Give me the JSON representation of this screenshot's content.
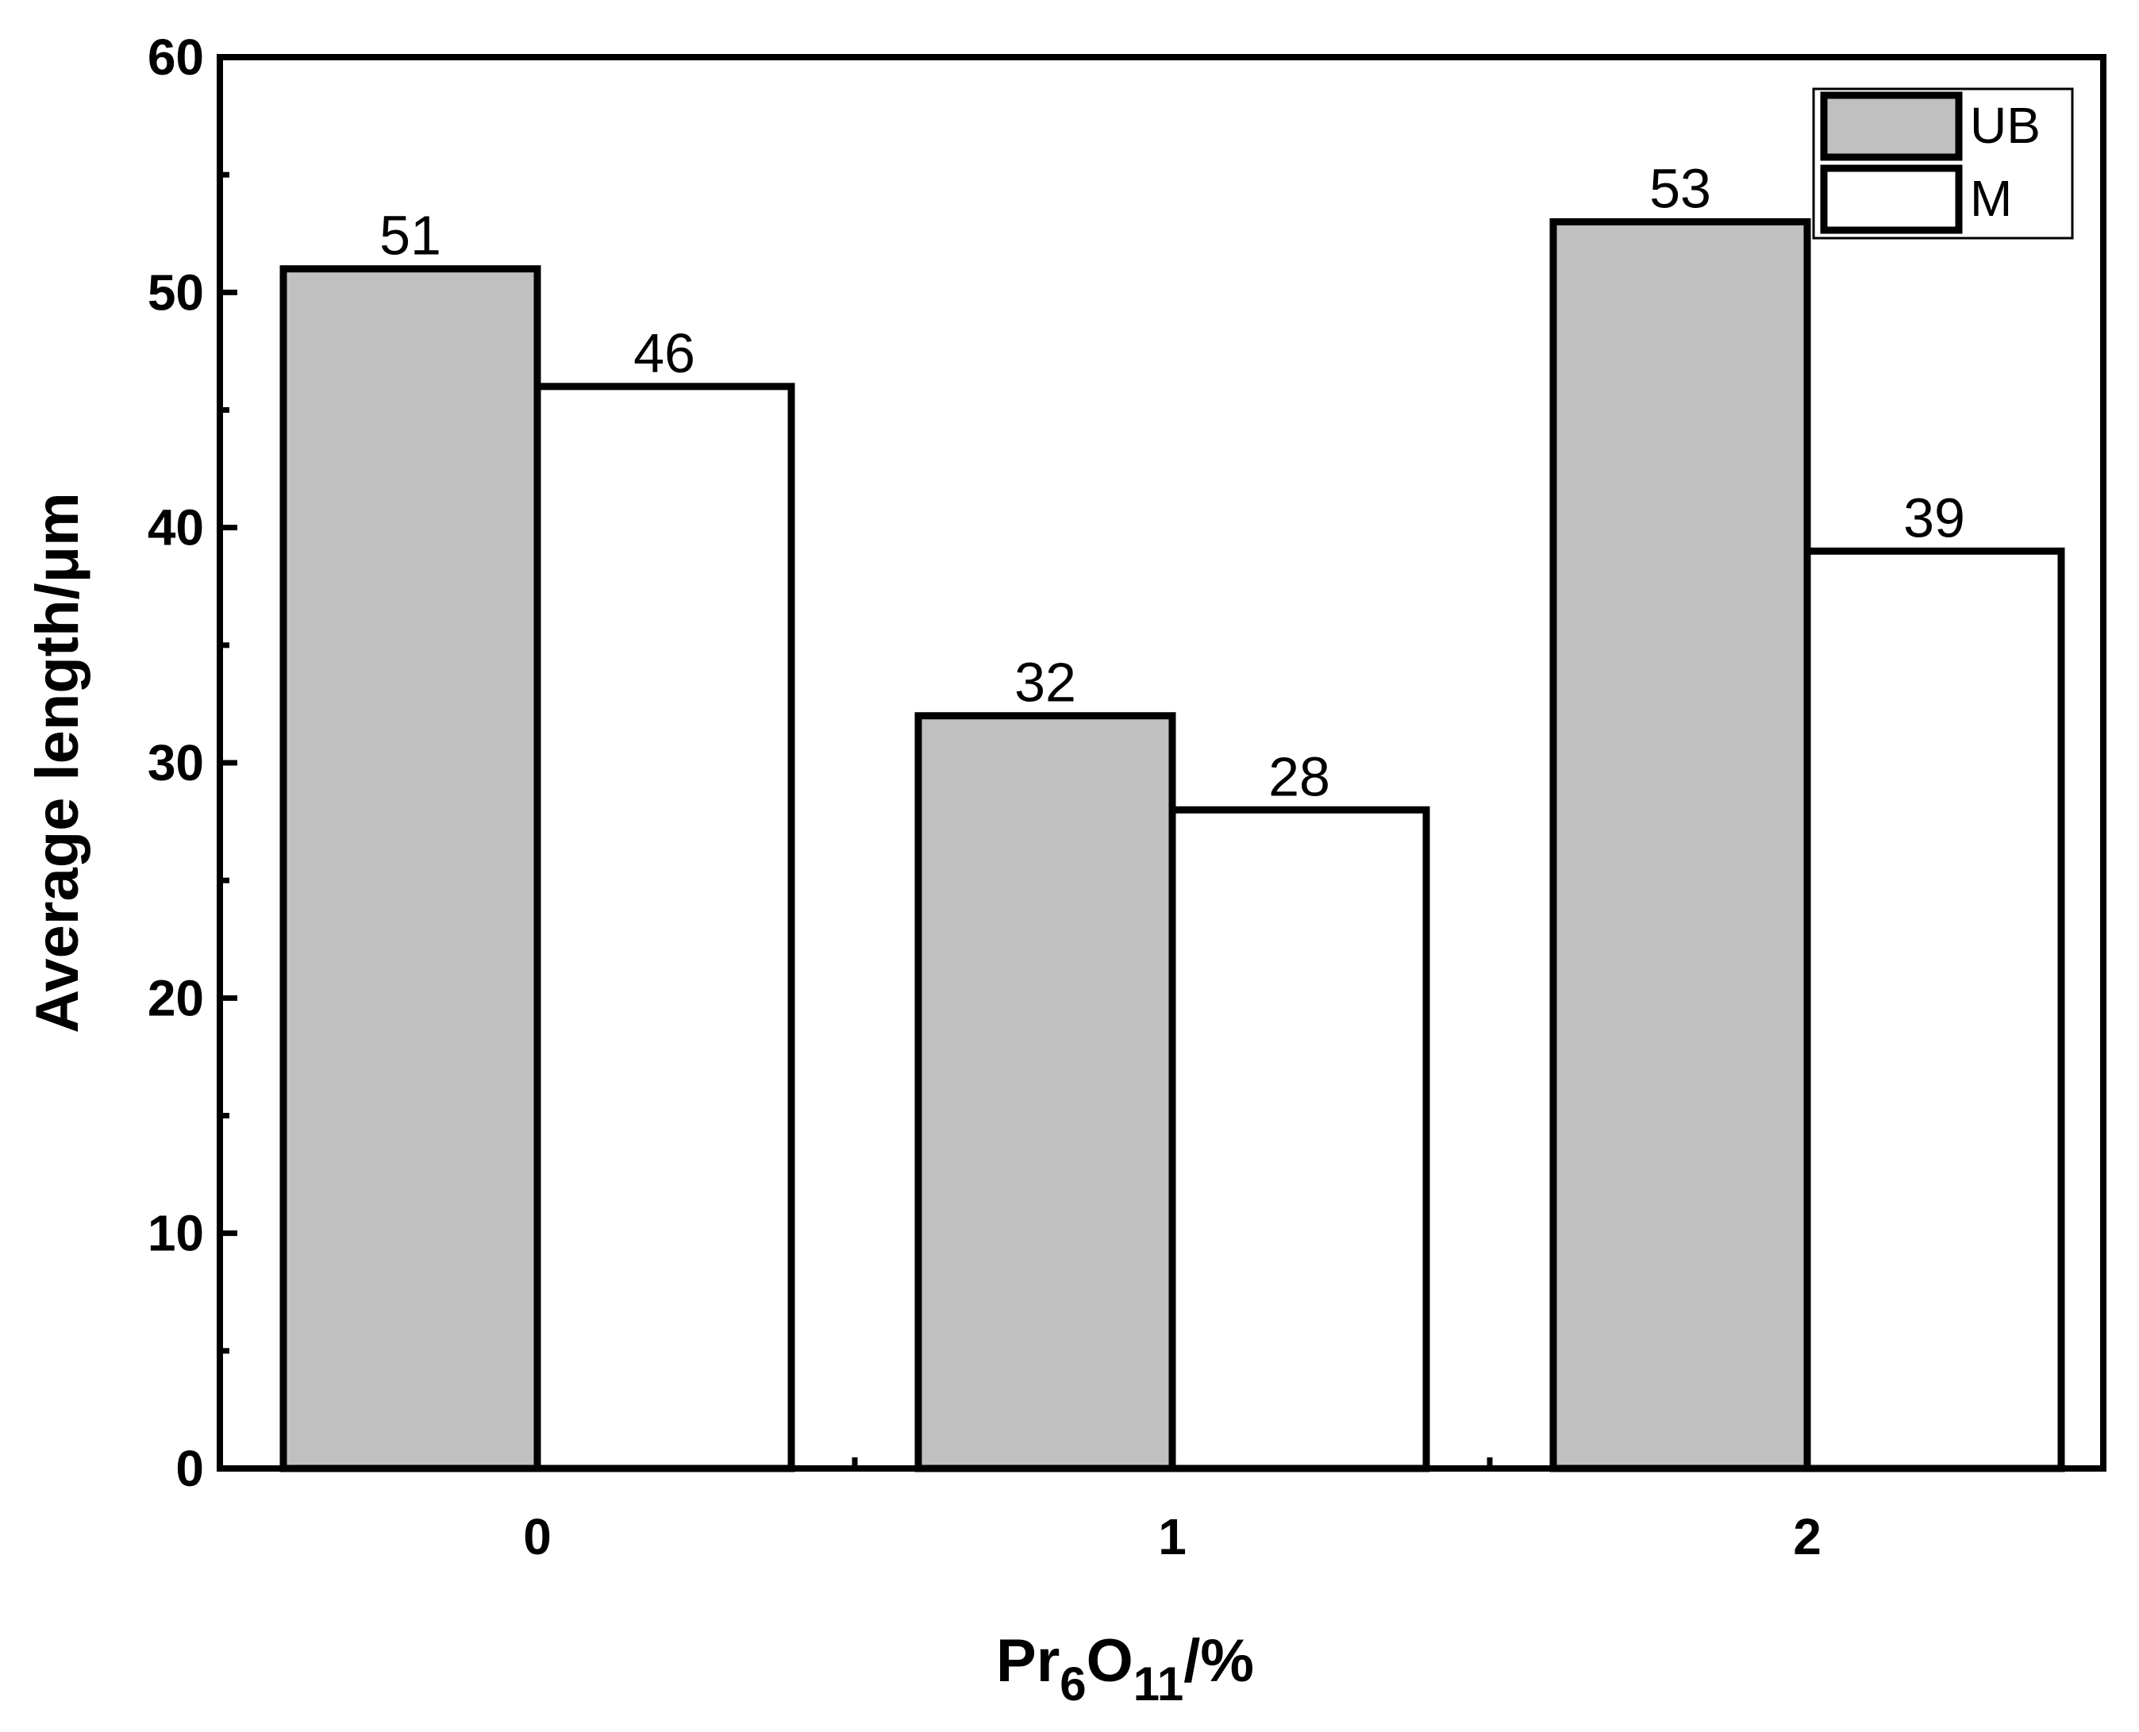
{
  "chart_data": {
    "type": "bar",
    "categories": [
      "0",
      "1",
      "2"
    ],
    "series": [
      {
        "name": "UB",
        "values": [
          51,
          32,
          53
        ],
        "color": "#c0c0c0"
      },
      {
        "name": "M",
        "values": [
          46,
          28,
          39
        ],
        "color": "#ffffff"
      }
    ],
    "xlabel": {
      "base_1": "Pr",
      "sub_1": "6",
      "base_2": "O",
      "sub_2": "11",
      "suffix": "/%"
    },
    "ylabel": "Average length/μm",
    "ylim": [
      0,
      60
    ],
    "yticks": [
      "0",
      "10",
      "20",
      "30",
      "40",
      "50",
      "60"
    ],
    "data_labels": [
      "51",
      "32",
      "53",
      "46",
      "28",
      "39"
    ],
    "legend_position": "top-right",
    "grid": false,
    "colors": {
      "axis": "#000000",
      "bar_outline": "#000000"
    }
  }
}
